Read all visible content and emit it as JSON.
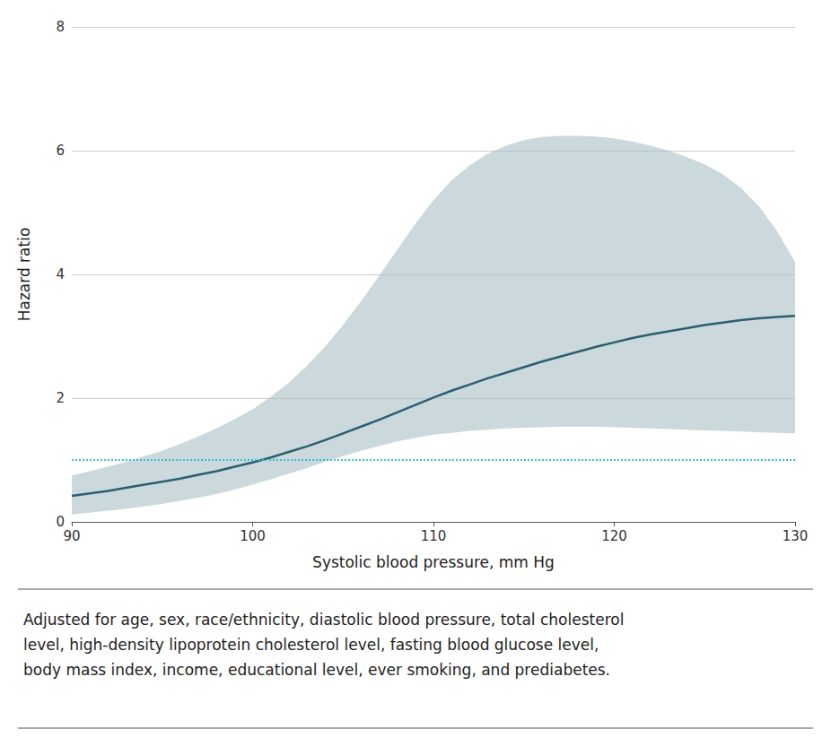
{
  "chart_data": {
    "type": "line",
    "xlabel": "Systolic blood pressure, mm Hg",
    "ylabel": "Hazard ratio",
    "caption": "Adjusted for age, sex, race/ethnicity, diastolic blood pressure, total cholesterol\nlevel, high-density lipoprotein cholesterol level, fasting blood glucose level,\nbody mass index, income, educational level, ever smoking, and prediabetes.",
    "x": [
      90,
      91,
      92,
      93,
      94,
      95,
      96,
      97,
      98,
      99,
      100,
      101,
      102,
      103,
      104,
      105,
      106,
      107,
      108,
      109,
      110,
      111,
      112,
      113,
      114,
      115,
      116,
      117,
      118,
      119,
      120,
      121,
      122,
      123,
      124,
      125,
      126,
      127,
      128,
      129,
      130
    ],
    "values": [
      0.42,
      0.46,
      0.5,
      0.55,
      0.6,
      0.65,
      0.7,
      0.76,
      0.82,
      0.89,
      0.96,
      1.04,
      1.13,
      1.22,
      1.32,
      1.43,
      1.54,
      1.65,
      1.77,
      1.89,
      2.01,
      2.12,
      2.22,
      2.32,
      2.41,
      2.5,
      2.59,
      2.67,
      2.75,
      2.83,
      2.9,
      2.97,
      3.03,
      3.08,
      3.13,
      3.18,
      3.22,
      3.26,
      3.29,
      3.31,
      3.33
    ],
    "color": "#2b5f6e",
    "ci_lower": [
      0.12,
      0.15,
      0.18,
      0.21,
      0.25,
      0.29,
      0.34,
      0.39,
      0.45,
      0.52,
      0.6,
      0.69,
      0.78,
      0.87,
      0.97,
      1.06,
      1.15,
      1.23,
      1.3,
      1.36,
      1.41,
      1.44,
      1.47,
      1.49,
      1.51,
      1.52,
      1.53,
      1.54,
      1.54,
      1.54,
      1.53,
      1.52,
      1.51,
      1.5,
      1.49,
      1.48,
      1.47,
      1.46,
      1.45,
      1.44,
      1.43
    ],
    "ci_upper": [
      0.75,
      0.82,
      0.89,
      0.97,
      1.06,
      1.15,
      1.26,
      1.38,
      1.51,
      1.66,
      1.82,
      2.02,
      2.25,
      2.52,
      2.83,
      3.18,
      3.57,
      3.98,
      4.4,
      4.82,
      5.2,
      5.52,
      5.76,
      5.95,
      6.08,
      6.17,
      6.22,
      6.24,
      6.24,
      6.23,
      6.2,
      6.15,
      6.08,
      6.0,
      5.9,
      5.78,
      5.62,
      5.4,
      5.1,
      4.7,
      4.2
    ],
    "ci_color": "#a8bfc4",
    "ref_line": {
      "value": 1.0,
      "color": "#3bbcd4",
      "line_style": "dotted"
    },
    "xlim": [
      90,
      130
    ],
    "xticks": [
      90,
      100,
      110,
      120,
      130
    ],
    "ylim": [
      0,
      8
    ],
    "yticks": [
      0,
      2,
      4,
      6,
      8
    ],
    "grid": true
  }
}
